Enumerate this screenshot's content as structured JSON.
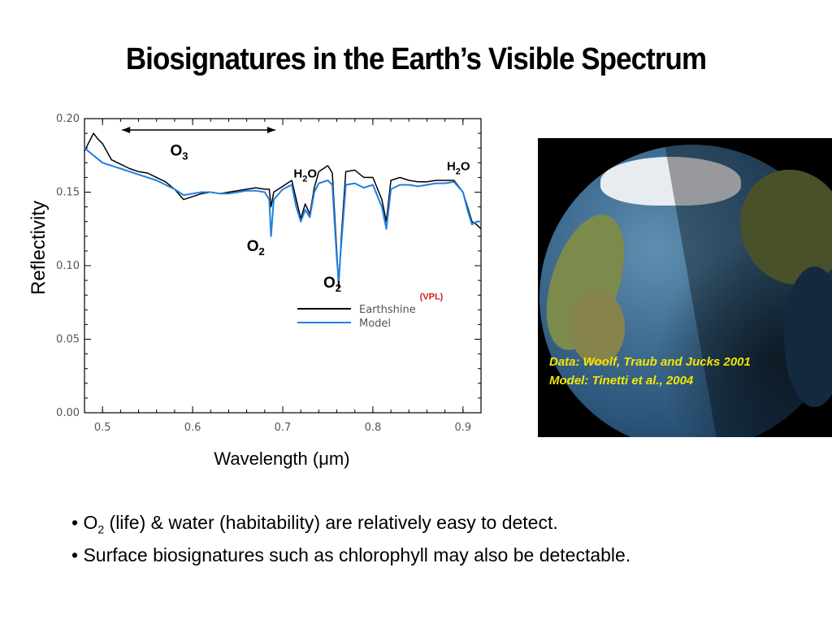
{
  "slide": {
    "title": "Biosignatures in the Earth’s Visible Spectrum",
    "bullets": [
      {
        "bullet": "•",
        "prefix": "O",
        "sub": "2",
        "text": " (life) & water (habitability) are relatively easy to detect."
      },
      {
        "bullet": "•",
        "prefix": "",
        "sub": "",
        "text": " Surface biosignatures such as chlorophyll may also be detectable."
      }
    ]
  },
  "image_credit": {
    "data_line": "Data: Woolf, Traub and Jucks 2001",
    "model_line": "Model: Tinetti et al., 2004"
  },
  "colors": {
    "earthshine": "#000000",
    "model": "#1f7fe0",
    "credit": "#f3e600"
  },
  "chart_data": {
    "type": "line",
    "title": "",
    "xlabel": "Wavelength (μm)",
    "ylabel": "Reflectivity",
    "xlim": [
      0.48,
      0.92
    ],
    "ylim": [
      0.0,
      0.2
    ],
    "xticks": [
      0.5,
      0.6,
      0.7,
      0.8,
      0.9
    ],
    "xtick_labels": [
      "0.5",
      "0.6",
      "0.7",
      "0.8",
      "0.9"
    ],
    "yticks": [
      0.0,
      0.05,
      0.1,
      0.15,
      0.2
    ],
    "ytick_labels": [
      "0.00",
      "0.05",
      "0.10",
      "0.15",
      "0.20"
    ],
    "grid": false,
    "legend_position": "center-right",
    "series": [
      {
        "name": "Earthshine",
        "color": "#000000",
        "x": [
          0.48,
          0.49,
          0.495,
          0.5,
          0.51,
          0.52,
          0.53,
          0.54,
          0.55,
          0.56,
          0.57,
          0.58,
          0.59,
          0.6,
          0.61,
          0.62,
          0.63,
          0.64,
          0.65,
          0.66,
          0.67,
          0.68,
          0.685,
          0.687,
          0.69,
          0.7,
          0.71,
          0.715,
          0.72,
          0.725,
          0.73,
          0.735,
          0.74,
          0.75,
          0.755,
          0.76,
          0.762,
          0.765,
          0.77,
          0.78,
          0.79,
          0.8,
          0.81,
          0.815,
          0.82,
          0.83,
          0.84,
          0.85,
          0.86,
          0.87,
          0.88,
          0.89,
          0.9,
          0.905,
          0.91,
          0.915,
          0.92
        ],
        "y": [
          0.178,
          0.19,
          0.186,
          0.183,
          0.172,
          0.169,
          0.166,
          0.164,
          0.163,
          0.16,
          0.157,
          0.152,
          0.145,
          0.147,
          0.149,
          0.15,
          0.149,
          0.15,
          0.151,
          0.152,
          0.153,
          0.152,
          0.152,
          0.14,
          0.15,
          0.154,
          0.158,
          0.145,
          0.132,
          0.142,
          0.135,
          0.153,
          0.164,
          0.168,
          0.163,
          0.11,
          0.085,
          0.12,
          0.164,
          0.165,
          0.16,
          0.16,
          0.145,
          0.13,
          0.158,
          0.16,
          0.158,
          0.157,
          0.157,
          0.158,
          0.158,
          0.158,
          0.15,
          0.14,
          0.13,
          0.128,
          0.125
        ]
      },
      {
        "name": "Model",
        "color": "#1f7fe0",
        "x": [
          0.48,
          0.49,
          0.5,
          0.51,
          0.52,
          0.53,
          0.54,
          0.55,
          0.56,
          0.57,
          0.58,
          0.59,
          0.6,
          0.61,
          0.62,
          0.63,
          0.64,
          0.65,
          0.66,
          0.67,
          0.68,
          0.685,
          0.687,
          0.69,
          0.7,
          0.71,
          0.715,
          0.72,
          0.725,
          0.73,
          0.735,
          0.74,
          0.75,
          0.755,
          0.76,
          0.762,
          0.765,
          0.77,
          0.78,
          0.79,
          0.8,
          0.81,
          0.815,
          0.82,
          0.83,
          0.84,
          0.85,
          0.86,
          0.87,
          0.88,
          0.89,
          0.9,
          0.905,
          0.91,
          0.915,
          0.92
        ],
        "y": [
          0.18,
          0.175,
          0.17,
          0.168,
          0.166,
          0.164,
          0.162,
          0.16,
          0.158,
          0.155,
          0.152,
          0.148,
          0.149,
          0.15,
          0.15,
          0.149,
          0.149,
          0.15,
          0.151,
          0.151,
          0.15,
          0.145,
          0.12,
          0.145,
          0.152,
          0.155,
          0.14,
          0.13,
          0.138,
          0.133,
          0.15,
          0.156,
          0.158,
          0.155,
          0.105,
          0.09,
          0.115,
          0.155,
          0.156,
          0.153,
          0.155,
          0.14,
          0.125,
          0.152,
          0.155,
          0.155,
          0.154,
          0.155,
          0.156,
          0.156,
          0.157,
          0.15,
          0.138,
          0.128,
          0.13,
          0.13
        ]
      }
    ],
    "annotations": [
      {
        "label": "O",
        "sub": "3",
        "x": 0.585,
        "y": 0.175
      },
      {
        "label": "H",
        "sub": "2",
        "label2": "O",
        "x": 0.725,
        "y": 0.16
      },
      {
        "label": "H",
        "sub": "2",
        "label2": "O",
        "x": 0.895,
        "y": 0.165
      },
      {
        "label": "O",
        "sub": "2",
        "x": 0.67,
        "y": 0.11
      },
      {
        "label": "O",
        "sub": "2",
        "x": 0.755,
        "y": 0.085
      },
      {
        "label": "(VPL)",
        "x": 0.865,
        "y": 0.077
      }
    ],
    "o3_band": [
      0.5,
      0.69
    ]
  }
}
